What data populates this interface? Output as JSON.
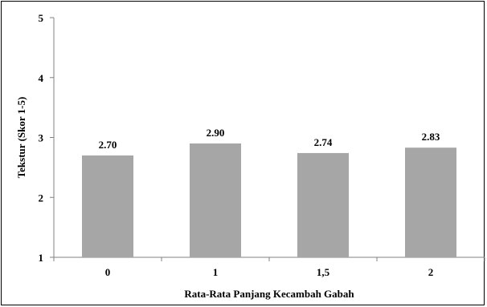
{
  "chart_data": {
    "type": "bar",
    "categories": [
      "0",
      "1",
      "1,5",
      "2"
    ],
    "values": [
      2.7,
      2.9,
      2.74,
      2.83
    ],
    "data_labels": [
      "2.70",
      "2.90",
      "2.74",
      "2.83"
    ],
    "xlabel": "Rata-Rata Panjang Kecambah Gabah",
    "ylabel": "Tekstur (Skor 1-5)",
    "ylim": [
      1,
      5
    ],
    "yticks": [
      "1",
      "2",
      "3",
      "4",
      "5"
    ],
    "grid": false,
    "legend": "none",
    "bar_color": "#a6a6a6"
  }
}
